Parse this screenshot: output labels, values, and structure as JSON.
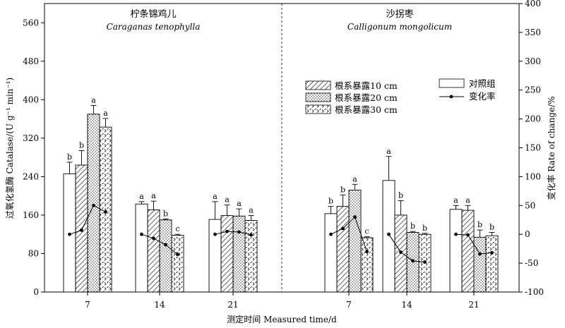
{
  "chart_data": {
    "type": "bar",
    "x": {
      "label": "测定时间 Measured time/d",
      "tick_labels": [
        "7",
        "14",
        "21",
        "7",
        "14",
        "21"
      ]
    },
    "y_left": {
      "label": "过氧化氢酶 Catalase/(U g⁻¹ min⁻¹)",
      "range": [
        0,
        600
      ],
      "ticks": [
        0,
        80,
        160,
        240,
        320,
        400,
        480,
        560
      ]
    },
    "y_right": {
      "label": "变化率 Rate of change/%",
      "range": [
        -100,
        400
      ],
      "ticks": [
        -100,
        -50,
        0,
        50,
        100,
        150,
        200,
        250,
        300,
        350,
        400
      ]
    },
    "legend": {
      "placement": "top-right",
      "items": [
        {
          "id": "d10",
          "label": "根系暴露10 cm"
        },
        {
          "id": "ck",
          "label": "对照组"
        },
        {
          "id": "d20",
          "label": "根系暴露20 cm"
        },
        {
          "id": "rate",
          "label": "变化率"
        },
        {
          "id": "d30",
          "label": "根系暴露30 cm"
        }
      ]
    },
    "panels": [
      {
        "title_zh": "柠条锦鸡儿",
        "title_en": "Caraganas tenophylla",
        "groups": [
          {
            "day": "7",
            "bars": [
              {
                "series": "ck",
                "value": 246,
                "error": 24,
                "sig": "b"
              },
              {
                "series": "d10",
                "value": 264,
                "error": 30,
                "sig": "b"
              },
              {
                "series": "d20",
                "value": 370,
                "error": 18,
                "sig": "a"
              },
              {
                "series": "d30",
                "value": 343,
                "error": 18,
                "sig": "a"
              }
            ],
            "rate": [
              0,
              7,
              50,
              39
            ]
          },
          {
            "day": "14",
            "bars": [
              {
                "series": "ck",
                "value": 183,
                "error": 5,
                "sig": "a"
              },
              {
                "series": "d10",
                "value": 171,
                "error": 18,
                "sig": "a"
              },
              {
                "series": "d20",
                "value": 150,
                "error": 2,
                "sig": "b"
              },
              {
                "series": "d30",
                "value": 118,
                "error": 2,
                "sig": "c"
              }
            ],
            "rate": [
              0,
              -7,
              -18,
              -35
            ]
          },
          {
            "day": "21",
            "bars": [
              {
                "series": "ck",
                "value": 151,
                "error": 37,
                "sig": "a"
              },
              {
                "series": "d10",
                "value": 159,
                "error": 22,
                "sig": "a"
              },
              {
                "series": "d20",
                "value": 158,
                "error": 15,
                "sig": "a"
              },
              {
                "series": "d30",
                "value": 149,
                "error": 10,
                "sig": "a"
              }
            ],
            "rate": [
              0,
              5,
              4,
              -1
            ]
          }
        ]
      },
      {
        "title_zh": "沙拐枣",
        "title_en": "Calligonum mongolicum",
        "groups": [
          {
            "day": "7",
            "bars": [
              {
                "series": "ck",
                "value": 163,
                "error": 15,
                "sig": "b"
              },
              {
                "series": "d10",
                "value": 178,
                "error": 24,
                "sig": "b"
              },
              {
                "series": "d20",
                "value": 212,
                "error": 12,
                "sig": "a"
              },
              {
                "series": "d30",
                "value": 113,
                "error": 2,
                "sig": "c"
              }
            ],
            "rate": [
              0,
              10,
              30,
              -30
            ]
          },
          {
            "day": "14",
            "bars": [
              {
                "series": "ck",
                "value": 232,
                "error": 50,
                "sig": "a"
              },
              {
                "series": "d10",
                "value": 160,
                "error": 30,
                "sig": "b"
              },
              {
                "series": "d20",
                "value": 124,
                "error": 2,
                "sig": "b"
              },
              {
                "series": "d30",
                "value": 120,
                "error": 2,
                "sig": "b"
              }
            ],
            "rate": [
              0,
              -31,
              -46,
              -48
            ]
          },
          {
            "day": "21",
            "bars": [
              {
                "series": "ck",
                "value": 172,
                "error": 8,
                "sig": "a"
              },
              {
                "series": "d10",
                "value": 170,
                "error": 10,
                "sig": "a"
              },
              {
                "series": "d20",
                "value": 114,
                "error": 15,
                "sig": "b"
              },
              {
                "series": "d30",
                "value": 117,
                "error": 7,
                "sig": "b"
              }
            ],
            "rate": [
              0,
              -1,
              -34,
              -32
            ]
          }
        ]
      }
    ]
  }
}
